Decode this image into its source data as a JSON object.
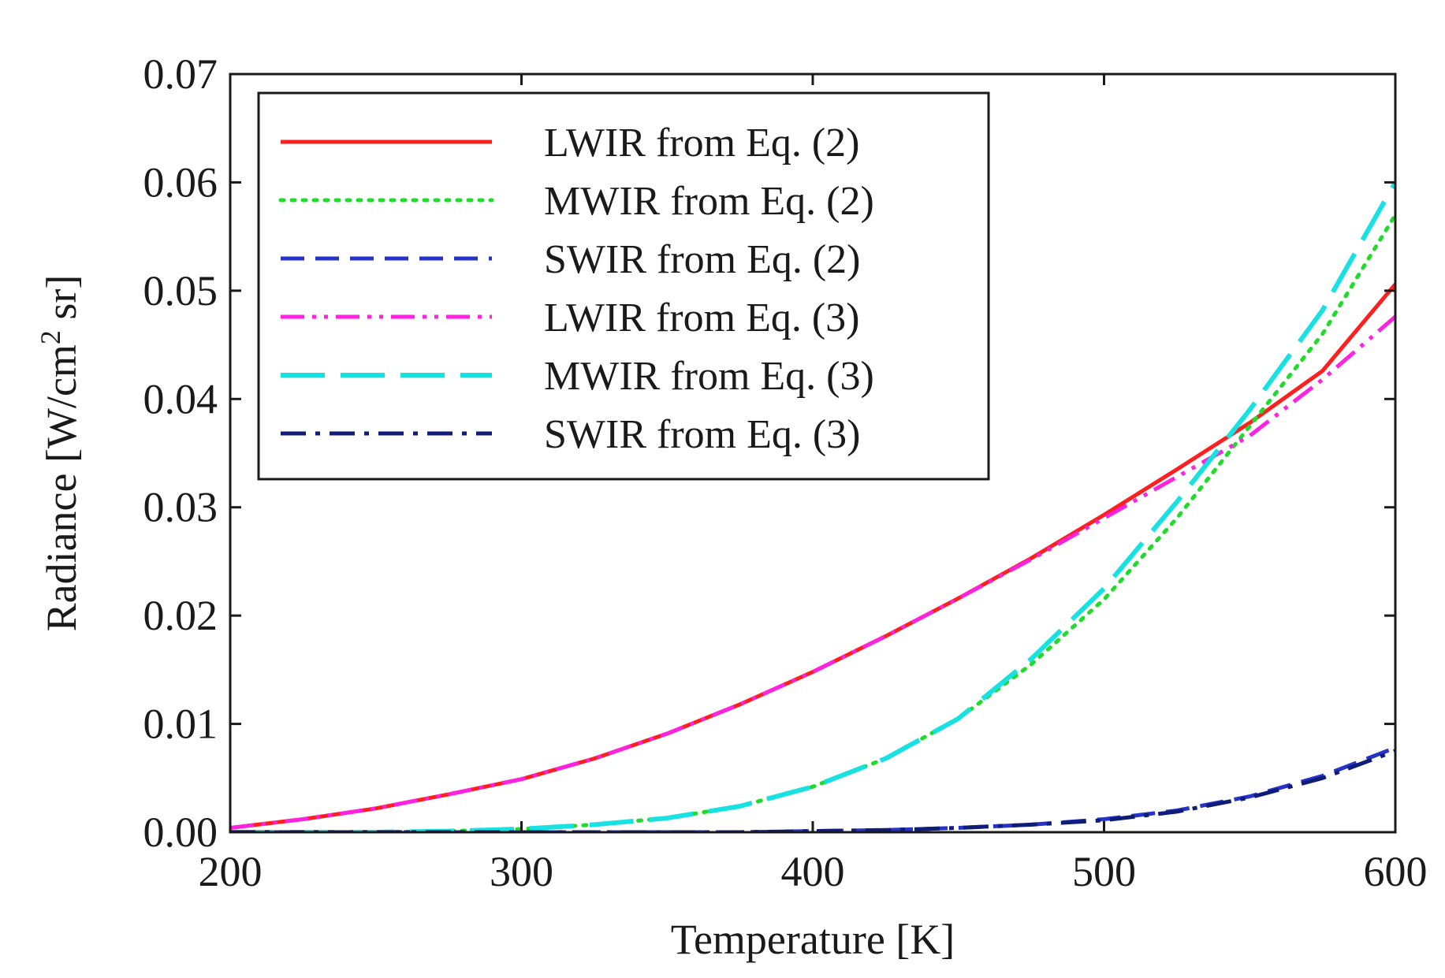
{
  "chart_data": {
    "type": "line",
    "title": "",
    "xlabel": "Temperature [K]",
    "ylabel_parts": {
      "main": "Radiance [W/cm",
      "sup": "2",
      "tail": " sr]"
    },
    "xlim": [
      200,
      600
    ],
    "ylim": [
      0,
      0.07
    ],
    "xticks": [
      200,
      300,
      400,
      500,
      600
    ],
    "xtick_labels": [
      "200",
      "300",
      "400",
      "500",
      "600"
    ],
    "yticks": [
      0,
      0.01,
      0.02,
      0.03,
      0.04,
      0.05,
      0.06,
      0.07
    ],
    "ytick_labels": [
      "0.00",
      "0.01",
      "0.02",
      "0.03",
      "0.04",
      "0.05",
      "0.06",
      "0.07"
    ],
    "grid": false,
    "legend_position": "top-left",
    "x": [
      200,
      225,
      250,
      275,
      300,
      325,
      350,
      375,
      400,
      425,
      450,
      475,
      500,
      525,
      550,
      575,
      600
    ],
    "series": [
      {
        "name": "LWIR from Eq. (2)",
        "color": "#ff1f1f",
        "dash": "solid",
        "width": 5,
        "values": [
          0.0004,
          0.0012,
          0.0022,
          0.0035,
          0.0049,
          0.0068,
          0.0091,
          0.0118,
          0.0148,
          0.0181,
          0.0216,
          0.0253,
          0.0293,
          0.0335,
          0.0378,
          0.0426,
          0.0506
        ]
      },
      {
        "name": "MWIR from Eq. (2)",
        "color": "#1fdc2b",
        "dash": "dotted",
        "width": 5,
        "values": [
          0.0,
          0.0,
          0.0,
          0.0001,
          0.0003,
          0.0007,
          0.0013,
          0.0024,
          0.0042,
          0.0068,
          0.0105,
          0.0155,
          0.0215,
          0.029,
          0.0375,
          0.046,
          0.057
        ]
      },
      {
        "name": "SWIR from Eq. (2)",
        "color": "#2533c8",
        "dash": "dashed",
        "width": 5,
        "values": [
          0.0,
          0.0,
          0.0,
          0.0,
          0.0,
          0.0,
          0.0,
          0.0,
          0.0001,
          0.0002,
          0.0004,
          0.0007,
          0.0012,
          0.002,
          0.0033,
          0.0052,
          0.0078
        ]
      },
      {
        "name": "LWIR from Eq. (3)",
        "color": "#ff22e0",
        "dash": "dashdotdot",
        "width": 5,
        "values": [
          0.0004,
          0.0012,
          0.0022,
          0.0035,
          0.0049,
          0.0068,
          0.0091,
          0.0118,
          0.0148,
          0.0181,
          0.0216,
          0.0252,
          0.029,
          0.0328,
          0.0366,
          0.0418,
          0.0476
        ]
      },
      {
        "name": "MWIR from Eq. (3)",
        "color": "#18e1e1",
        "dash": "longdash",
        "width": 6,
        "values": [
          0.0,
          0.0,
          0.0,
          0.0001,
          0.0003,
          0.0007,
          0.0013,
          0.0024,
          0.0042,
          0.0068,
          0.0105,
          0.016,
          0.0225,
          0.0305,
          0.039,
          0.0482,
          0.06
        ]
      },
      {
        "name": "SWIR from Eq. (3)",
        "color": "#0f1c78",
        "dash": "dashdot",
        "width": 5,
        "values": [
          0.0,
          0.0,
          0.0,
          0.0,
          0.0,
          0.0,
          0.0,
          0.0,
          0.0001,
          0.0002,
          0.0004,
          0.0007,
          0.0011,
          0.0019,
          0.0032,
          0.005,
          0.0075
        ]
      }
    ]
  }
}
